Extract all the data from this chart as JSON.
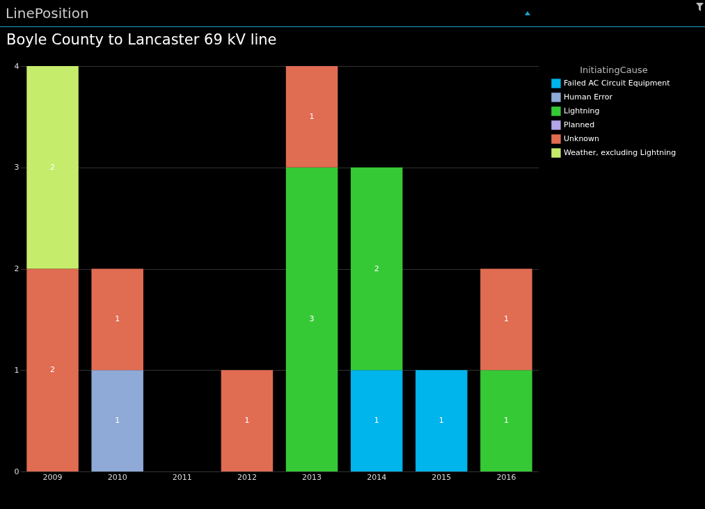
{
  "chart_data": {
    "type": "bar",
    "title": "Boyle County to Lancaster 69 kV line",
    "annotations": [
      "LinePosition"
    ],
    "categories": [
      "2009",
      "2010",
      "2011",
      "2012",
      "2013",
      "2014",
      "2015",
      "2016"
    ],
    "stacked": true,
    "data_labels": true,
    "legend_title": "InitiatingCause",
    "legend": "top right",
    "grid": "y",
    "ylim": [
      0,
      4
    ],
    "yticks": [
      0,
      1,
      2,
      3,
      4
    ],
    "series": [
      {
        "name": "Failed AC Circuit Equipment",
        "color": "#00b4ec",
        "values": [
          null,
          null,
          null,
          null,
          null,
          1,
          1,
          null
        ]
      },
      {
        "name": "Human Error",
        "color": "#8faad6",
        "values": [
          null,
          1,
          null,
          null,
          null,
          null,
          null,
          null
        ]
      },
      {
        "name": "Lightning",
        "color": "#36c936",
        "values": [
          null,
          null,
          null,
          null,
          3,
          2,
          null,
          1
        ]
      },
      {
        "name": "Planned",
        "color": "#b4a4e8",
        "values": [
          null,
          null,
          null,
          null,
          null,
          null,
          null,
          null
        ]
      },
      {
        "name": "Unknown",
        "color": "#e06c52",
        "values": [
          2,
          1,
          null,
          1,
          1,
          null,
          null,
          1
        ]
      },
      {
        "name": "Weather, excluding Lightning",
        "color": "#c6ec6c",
        "values": [
          2,
          null,
          null,
          null,
          null,
          null,
          null,
          null
        ]
      }
    ]
  }
}
